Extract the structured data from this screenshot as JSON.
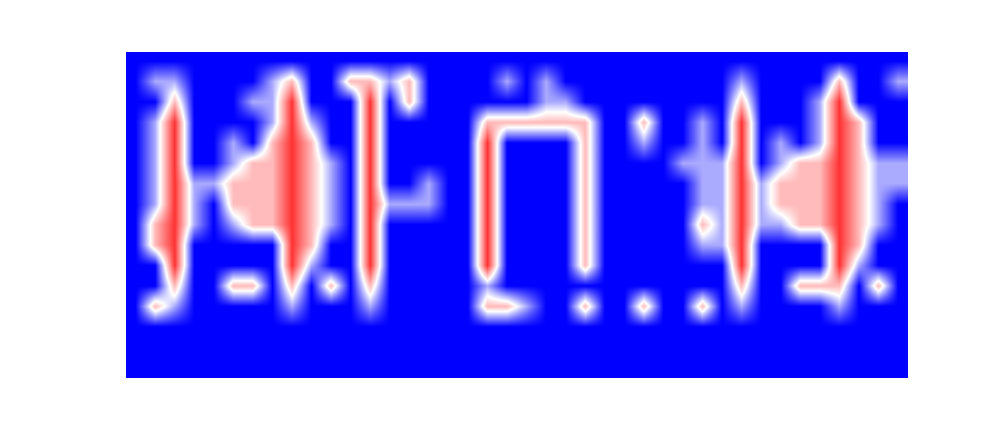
{
  "chart_data": {
    "type": "heatmap",
    "colors": [
      "#0000ff",
      "#ffffff",
      "#ff3333"
    ],
    "zlim": [
      0,
      3
    ],
    "tick_labels": false,
    "cells": [
      [
        0,
        0,
        0,
        0,
        0,
        0,
        0,
        0,
        0,
        0,
        0,
        0,
        0,
        0,
        0,
        0,
        0,
        0,
        0,
        0,
        0,
        0,
        0,
        0,
        0,
        0,
        0,
        0,
        0,
        0,
        0,
        0,
        0,
        0,
        0,
        0,
        0,
        0,
        0,
        0
      ],
      [
        0,
        1,
        1,
        0,
        0,
        0,
        0,
        1,
        2,
        0,
        0,
        2,
        2,
        1,
        2,
        0,
        0,
        0,
        0,
        1,
        0,
        1,
        0,
        0,
        0,
        0,
        0,
        0,
        0,
        0,
        0,
        1,
        0,
        0,
        0,
        0,
        2,
        0,
        0,
        1
      ],
      [
        0,
        0,
        2,
        0,
        0,
        0,
        1,
        1,
        3,
        0,
        0,
        0,
        3,
        0,
        2,
        0,
        0,
        0,
        0,
        0,
        0,
        1,
        1,
        0,
        0,
        0,
        0,
        0,
        0,
        0,
        0,
        2,
        0,
        0,
        0,
        1,
        3,
        0,
        0,
        0
      ],
      [
        0,
        1,
        3,
        0,
        0,
        0,
        0,
        1,
        3,
        1,
        0,
        0,
        3,
        0,
        0,
        0,
        0,
        0,
        2,
        2,
        2,
        2,
        2,
        2,
        0,
        0,
        2,
        0,
        0,
        1,
        0,
        3,
        0,
        0,
        0,
        1,
        3,
        2,
        0,
        0
      ],
      [
        0,
        1,
        3,
        0,
        0,
        1,
        0,
        2,
        3,
        2,
        0,
        0,
        3,
        0,
        0,
        0,
        0,
        0,
        3,
        0,
        0,
        0,
        0,
        2,
        0,
        0,
        1,
        0,
        0,
        1,
        0,
        3,
        0,
        1,
        0,
        1,
        3,
        2,
        0,
        0
      ],
      [
        0,
        1,
        3,
        0,
        0,
        1,
        2,
        2,
        3,
        2,
        1,
        0,
        3,
        0,
        0,
        0,
        0,
        0,
        3,
        0,
        0,
        0,
        0,
        2,
        0,
        0,
        0,
        0,
        1,
        1,
        1,
        3,
        0,
        1,
        2,
        2,
        3,
        2,
        1,
        1
      ],
      [
        0,
        1,
        3,
        1,
        1,
        2,
        2,
        2,
        3,
        2,
        1,
        0,
        3,
        0,
        0,
        1,
        0,
        0,
        3,
        0,
        0,
        0,
        0,
        2,
        0,
        0,
        0,
        0,
        0,
        1,
        1,
        3,
        1,
        2,
        2,
        2,
        3,
        2,
        1,
        1
      ],
      [
        0,
        1,
        3,
        1,
        0,
        2,
        2,
        2,
        3,
        2,
        1,
        0,
        3,
        1,
        1,
        1,
        0,
        0,
        3,
        0,
        0,
        0,
        0,
        2,
        0,
        0,
        0,
        0,
        0,
        1,
        1,
        3,
        1,
        2,
        2,
        2,
        3,
        2,
        1,
        0
      ],
      [
        0,
        2,
        3,
        1,
        0,
        1,
        2,
        2,
        3,
        2,
        1,
        0,
        3,
        0,
        0,
        0,
        0,
        0,
        3,
        0,
        0,
        0,
        0,
        2,
        0,
        0,
        0,
        0,
        0,
        2,
        1,
        3,
        1,
        1,
        2,
        2,
        3,
        2,
        1,
        0
      ],
      [
        0,
        2,
        3,
        0,
        0,
        0,
        0,
        0,
        3,
        2,
        0,
        0,
        3,
        0,
        0,
        0,
        0,
        0,
        3,
        0,
        0,
        0,
        0,
        2,
        0,
        0,
        0,
        0,
        0,
        1,
        1,
        3,
        0,
        0,
        0,
        0,
        3,
        2,
        0,
        0
      ],
      [
        0,
        0,
        3,
        0,
        0,
        0,
        0,
        0,
        3,
        1,
        0,
        0,
        3,
        0,
        0,
        0,
        0,
        0,
        3,
        0,
        0,
        0,
        0,
        2,
        0,
        0,
        0,
        0,
        0,
        0,
        0,
        3,
        0,
        0,
        0,
        0,
        3,
        1,
        0,
        0
      ],
      [
        0,
        0,
        2,
        0,
        0,
        2,
        2,
        0,
        2,
        0,
        2,
        0,
        2,
        0,
        0,
        0,
        0,
        0,
        1,
        0,
        0,
        0,
        0,
        0,
        0,
        0,
        0,
        0,
        0,
        0,
        0,
        2,
        0,
        0,
        2,
        2,
        2,
        0,
        2,
        0
      ],
      [
        0,
        2,
        1,
        0,
        0,
        0,
        0,
        0,
        1,
        0,
        0,
        0,
        1,
        0,
        0,
        0,
        0,
        0,
        2,
        2,
        1,
        0,
        0,
        2,
        0,
        0,
        2,
        0,
        0,
        2,
        0,
        1,
        0,
        0,
        0,
        0,
        1,
        0,
        0,
        0
      ],
      [
        0,
        0,
        0,
        0,
        0,
        0,
        0,
        0,
        0,
        0,
        0,
        0,
        0,
        0,
        0,
        0,
        0,
        0,
        0,
        0,
        0,
        0,
        0,
        0,
        0,
        0,
        0,
        0,
        0,
        0,
        0,
        0,
        0,
        0,
        0,
        0,
        0,
        0,
        0,
        0
      ],
      [
        0,
        0,
        0,
        0,
        0,
        0,
        0,
        0,
        0,
        0,
        0,
        0,
        0,
        0,
        0,
        0,
        0,
        0,
        0,
        0,
        0,
        0,
        0,
        0,
        0,
        0,
        0,
        0,
        0,
        0,
        0,
        0,
        0,
        0,
        0,
        0,
        0,
        0,
        0,
        0
      ],
      [
        0,
        0,
        0,
        0,
        0,
        0,
        0,
        0,
        0,
        0,
        0,
        0,
        0,
        0,
        0,
        0,
        0,
        0,
        0,
        0,
        0,
        0,
        0,
        0,
        0,
        0,
        0,
        0,
        0,
        0,
        0,
        0,
        0,
        0,
        0,
        0,
        0,
        0,
        0,
        0
      ]
    ]
  }
}
